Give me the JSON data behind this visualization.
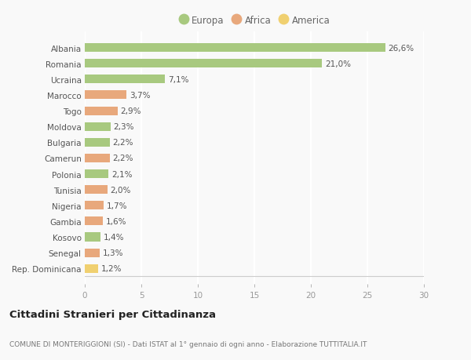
{
  "categories": [
    "Albania",
    "Romania",
    "Ucraina",
    "Marocco",
    "Togo",
    "Moldova",
    "Bulgaria",
    "Camerun",
    "Polonia",
    "Tunisia",
    "Nigeria",
    "Gambia",
    "Kosovo",
    "Senegal",
    "Rep. Dominicana"
  ],
  "values": [
    26.6,
    21.0,
    7.1,
    3.7,
    2.9,
    2.3,
    2.2,
    2.2,
    2.1,
    2.0,
    1.7,
    1.6,
    1.4,
    1.3,
    1.2
  ],
  "labels": [
    "26,6%",
    "21,0%",
    "7,1%",
    "3,7%",
    "2,9%",
    "2,3%",
    "2,2%",
    "2,2%",
    "2,1%",
    "2,0%",
    "1,7%",
    "1,6%",
    "1,4%",
    "1,3%",
    "1,2%"
  ],
  "continents": [
    "Europa",
    "Europa",
    "Europa",
    "Africa",
    "Africa",
    "Europa",
    "Europa",
    "Africa",
    "Europa",
    "Africa",
    "Africa",
    "Africa",
    "Europa",
    "Africa",
    "America"
  ],
  "colors": {
    "Europa": "#a8c97f",
    "Africa": "#e8a87c",
    "America": "#f0d070"
  },
  "legend_order": [
    "Europa",
    "Africa",
    "America"
  ],
  "xlim": [
    0,
    30
  ],
  "xticks": [
    0,
    5,
    10,
    15,
    20,
    25,
    30
  ],
  "title": "Cittadini Stranieri per Cittadinanza",
  "subtitle": "COMUNE DI MONTERIGGIONI (SI) - Dati ISTAT al 1° gennaio di ogni anno - Elaborazione TUTTITALIA.IT",
  "bg_color": "#f9f9f9",
  "grid_color": "#ffffff",
  "bar_height": 0.55,
  "label_fontsize": 7.5,
  "ytick_fontsize": 7.5,
  "xtick_fontsize": 7.5,
  "legend_fontsize": 8.5,
  "title_fontsize": 9.5,
  "subtitle_fontsize": 6.5,
  "label_color": "#555555",
  "ytick_color": "#555555",
  "xtick_color": "#999999"
}
